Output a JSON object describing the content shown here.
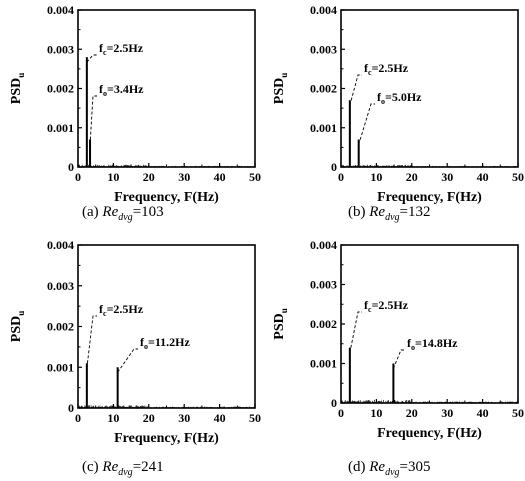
{
  "colors": {
    "ink": "#000000",
    "background": "#ffffff"
  },
  "chart_data": [
    {
      "type": "bar",
      "caption": {
        "label": "(a)",
        "re": "Re",
        "sub": "dvg",
        "value": "=103"
      },
      "xlabel": "Frequency, F(Hz)",
      "ylabel": {
        "main": "PSD",
        "sub": "u"
      },
      "xlim": [
        0,
        50
      ],
      "ylim": [
        0,
        0.004
      ],
      "xticks": [
        "0",
        "10",
        "20",
        "30",
        "40",
        "50"
      ],
      "yticks": [
        "0",
        "0.001",
        "0.002",
        "0.003",
        "0.004"
      ],
      "peaks": [
        {
          "x": 2.5,
          "y": 0.0028,
          "label": {
            "f": "f",
            "sub": "c",
            "val": "=2.5Hz"
          }
        },
        {
          "x": 3.4,
          "y": 0.0007,
          "label": {
            "f": "f",
            "sub": "o",
            "val": "=3.4Hz"
          }
        }
      ],
      "noise_max": 6e-05
    },
    {
      "type": "bar",
      "caption": {
        "label": "(b)",
        "re": "Re",
        "sub": "dvg",
        "value": "=132"
      },
      "xlabel": "Frequency, F(Hz)",
      "ylabel": {
        "main": "PSD",
        "sub": "u"
      },
      "xlim": [
        0,
        50
      ],
      "ylim": [
        0,
        0.004
      ],
      "xticks": [
        "0",
        "10",
        "20",
        "30",
        "40",
        "50"
      ],
      "yticks": [
        "0",
        "0.001",
        "0.002",
        "0.003",
        "0.004"
      ],
      "peaks": [
        {
          "x": 2.5,
          "y": 0.0017,
          "label": {
            "f": "f",
            "sub": "c",
            "val": "=2.5Hz"
          }
        },
        {
          "x": 5.0,
          "y": 0.0007,
          "label": {
            "f": "f",
            "sub": "o",
            "val": "=5.0Hz"
          }
        }
      ],
      "noise_max": 6e-05
    },
    {
      "type": "bar",
      "caption": {
        "label": "(c)",
        "re": "Re",
        "sub": "dvg",
        "value": "=241"
      },
      "xlabel": "Frequency, F(Hz)",
      "ylabel": {
        "main": "PSD",
        "sub": "u"
      },
      "xlim": [
        0,
        50
      ],
      "ylim": [
        0,
        0.004
      ],
      "xticks": [
        "0",
        "10",
        "20",
        "30",
        "40",
        "50"
      ],
      "yticks": [
        "0",
        "0.001",
        "0.002",
        "0.003",
        "0.004"
      ],
      "peaks": [
        {
          "x": 2.5,
          "y": 0.0011,
          "label": {
            "f": "f",
            "sub": "c",
            "val": "=2.5Hz"
          }
        },
        {
          "x": 11.2,
          "y": 0.001,
          "label": {
            "f": "f",
            "sub": "o",
            "val": "=11.2Hz"
          }
        }
      ],
      "noise_max": 7e-05
    },
    {
      "type": "bar",
      "caption": {
        "label": "(d)",
        "re": "Re",
        "sub": "dvg",
        "value": "=305"
      },
      "xlabel": "Frequency, F(Hz)",
      "ylabel": {
        "main": "PSD",
        "sub": "u"
      },
      "xlim": [
        0,
        50
      ],
      "ylim": [
        0,
        0.004
      ],
      "xticks": [
        "0",
        "10",
        "20",
        "30",
        "40",
        "50"
      ],
      "yticks": [
        "0",
        "0.001",
        "0.002",
        "0.003",
        "0.004"
      ],
      "peaks": [
        {
          "x": 2.5,
          "y": 0.0014,
          "label": {
            "f": "f",
            "sub": "c",
            "val": "=2.5Hz"
          }
        },
        {
          "x": 14.8,
          "y": 0.001,
          "label": {
            "f": "f",
            "sub": "o",
            "val": "=14.8Hz"
          }
        }
      ],
      "noise_max": 8e-05
    }
  ]
}
